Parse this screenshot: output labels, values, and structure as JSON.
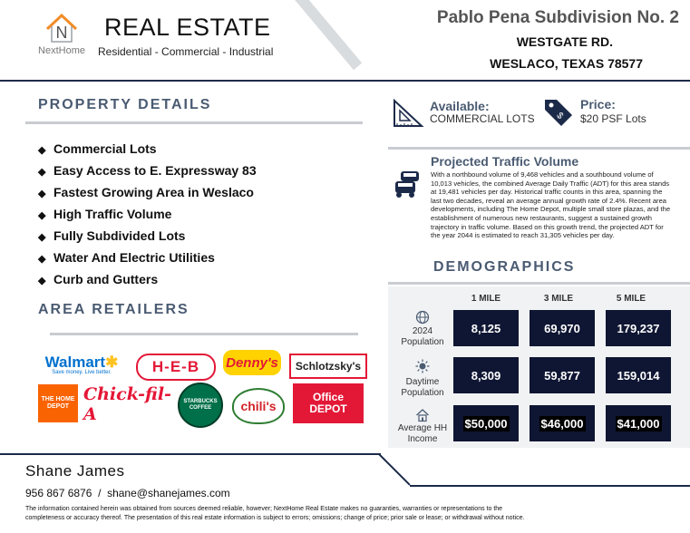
{
  "header": {
    "logo_text": "NextHome",
    "logo_letter": "N",
    "brand": "REAL ESTATE",
    "tagline": "Residential - Commercial - Industrial",
    "property_title": "Pablo Pena Subdivision No. 2",
    "street": "WESTGATE RD.",
    "city": "WESLACO, TEXAS 78577"
  },
  "property_details": {
    "heading": "PROPERTY DETAILS",
    "features": [
      "Commercial Lots",
      "Easy Access to E. Expressway 83",
      "Fastest Growing Area in Weslaco",
      "High Traffic Volume",
      "Fully Subdivided Lots",
      "Water And Electric Utilities",
      "Curb and Gutters"
    ]
  },
  "area_retailers": {
    "heading": "AREA RETAILERS",
    "logos": [
      {
        "name": "Walmart",
        "text": "Walmart",
        "subtext": "Save money. Live better.",
        "color": "#0071ce"
      },
      {
        "name": "HEB",
        "text": "H-E-B",
        "color": "#e31837"
      },
      {
        "name": "Dennys",
        "text": "Denny's",
        "color": "#e31837"
      },
      {
        "name": "Schlotzskys",
        "text": "Schlotzsky's",
        "color": "#222222"
      },
      {
        "name": "Home Depot",
        "text": "THE HOME DEPOT",
        "color": "#f96302"
      },
      {
        "name": "Chick-fil-A",
        "text": "Chick-fil-A",
        "color": "#e51636"
      },
      {
        "name": "Starbucks",
        "text": "STARBUCKS COFFEE",
        "color": "#00704a"
      },
      {
        "name": "Chilis",
        "text": "chili's",
        "color": "#d2232a"
      },
      {
        "name": "Office Depot",
        "text": "Office DEPOT",
        "color": "#e31837"
      }
    ]
  },
  "availability": {
    "label": "Available:",
    "value": "COMMERCIAL LOTS"
  },
  "price": {
    "label": "Price:",
    "value": "$20 PSF Lots",
    "icon": "price-tag-icon"
  },
  "traffic": {
    "heading": "Projected Traffic Volume",
    "body": "With a northbound volume of 9,468 vehicles and a southbound volume of 10,013 vehicles, the combined Average Daily Traffic (ADT) for this area stands at 19,481 vehicles per day. Historical traffic counts in this area, spanning the last two decades, reveal an average annual growth rate of 2.4%. Recent area developments, including The Home Depot, multiple small store plazas, and the establishment of numerous new restaurants, suggest a sustained growth trajectory in traffic volume. Based on this growth trend, the projected ADT for the year 2044 is estimated to reach 31,305 vehicles per day."
  },
  "demographics": {
    "heading": "DEMOGRAPHICS",
    "columns": [
      "1 MILE",
      "3 MILE",
      "5 MILE"
    ],
    "rows": [
      {
        "label": "2024 Population",
        "values": [
          "8,125",
          "69,970",
          "179,237"
        ]
      },
      {
        "label": "Daytime Population",
        "values": [
          "8,309",
          "59,877",
          "159,014"
        ]
      },
      {
        "label": "Average HH Income",
        "values": [
          "$50,000",
          "$46,000",
          "$41,000"
        ]
      }
    ]
  },
  "footer": {
    "agent": "Shane James",
    "contact": "956 867 6876  /  shane@shanejames.com",
    "disclaimer": "The information contained herein was obtained from sources deemed reliable, however; NextHome Real Estate makes no guaranties, warranties or representations to the completeness or accuracy thereof. The presentation of this real estate information is subject to errors; omissions; change of price; prior sale or lease; or withdrawal without notice."
  },
  "colors": {
    "navy": "#1c2a4a",
    "heading_slate": "#4a5b72",
    "cell_dark": "#0f1633"
  }
}
